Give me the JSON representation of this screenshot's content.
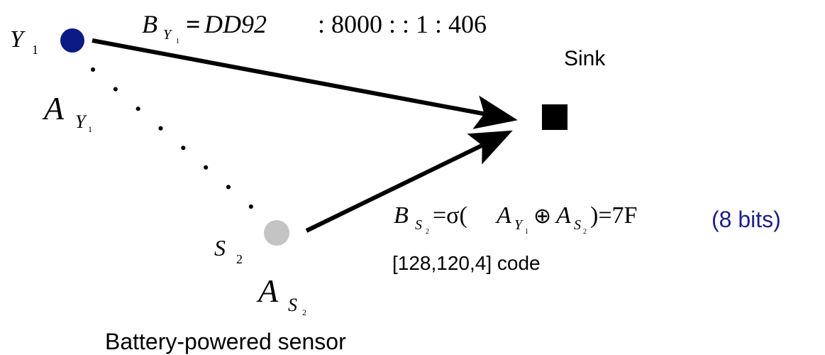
{
  "labels": {
    "y1": {
      "base": "Y",
      "sub": "1"
    },
    "a_y1": {
      "base": "A",
      "sub": "Y",
      "subsub": "1"
    },
    "s2": {
      "base": "S",
      "sub": "2"
    },
    "a_s2": {
      "base": "A",
      "sub": "S",
      "subsub": "2"
    },
    "sink": "Sink",
    "sensor": "Battery-powered sensor",
    "bits": "(8 bits)",
    "code": "[128,120,4] code"
  },
  "formulas": {
    "b_y1": {
      "lhs": {
        "base": "B",
        "sub": "Y",
        "subsub": "1"
      },
      "rhs_italic": "DD92",
      "eq": "=",
      "rhs": ": 8000 : : 1 : 406"
    },
    "b_s2": {
      "lhs": {
        "base": "B",
        "sub": "S",
        "subsub": "2"
      },
      "open": "=σ(",
      "a1": {
        "base": "A",
        "sub": "Y",
        "subsub": "1"
      },
      "op": "⊕",
      "a2": {
        "base": "A",
        "sub": "S",
        "subsub": "2"
      },
      "close": ")=7F"
    }
  }
}
